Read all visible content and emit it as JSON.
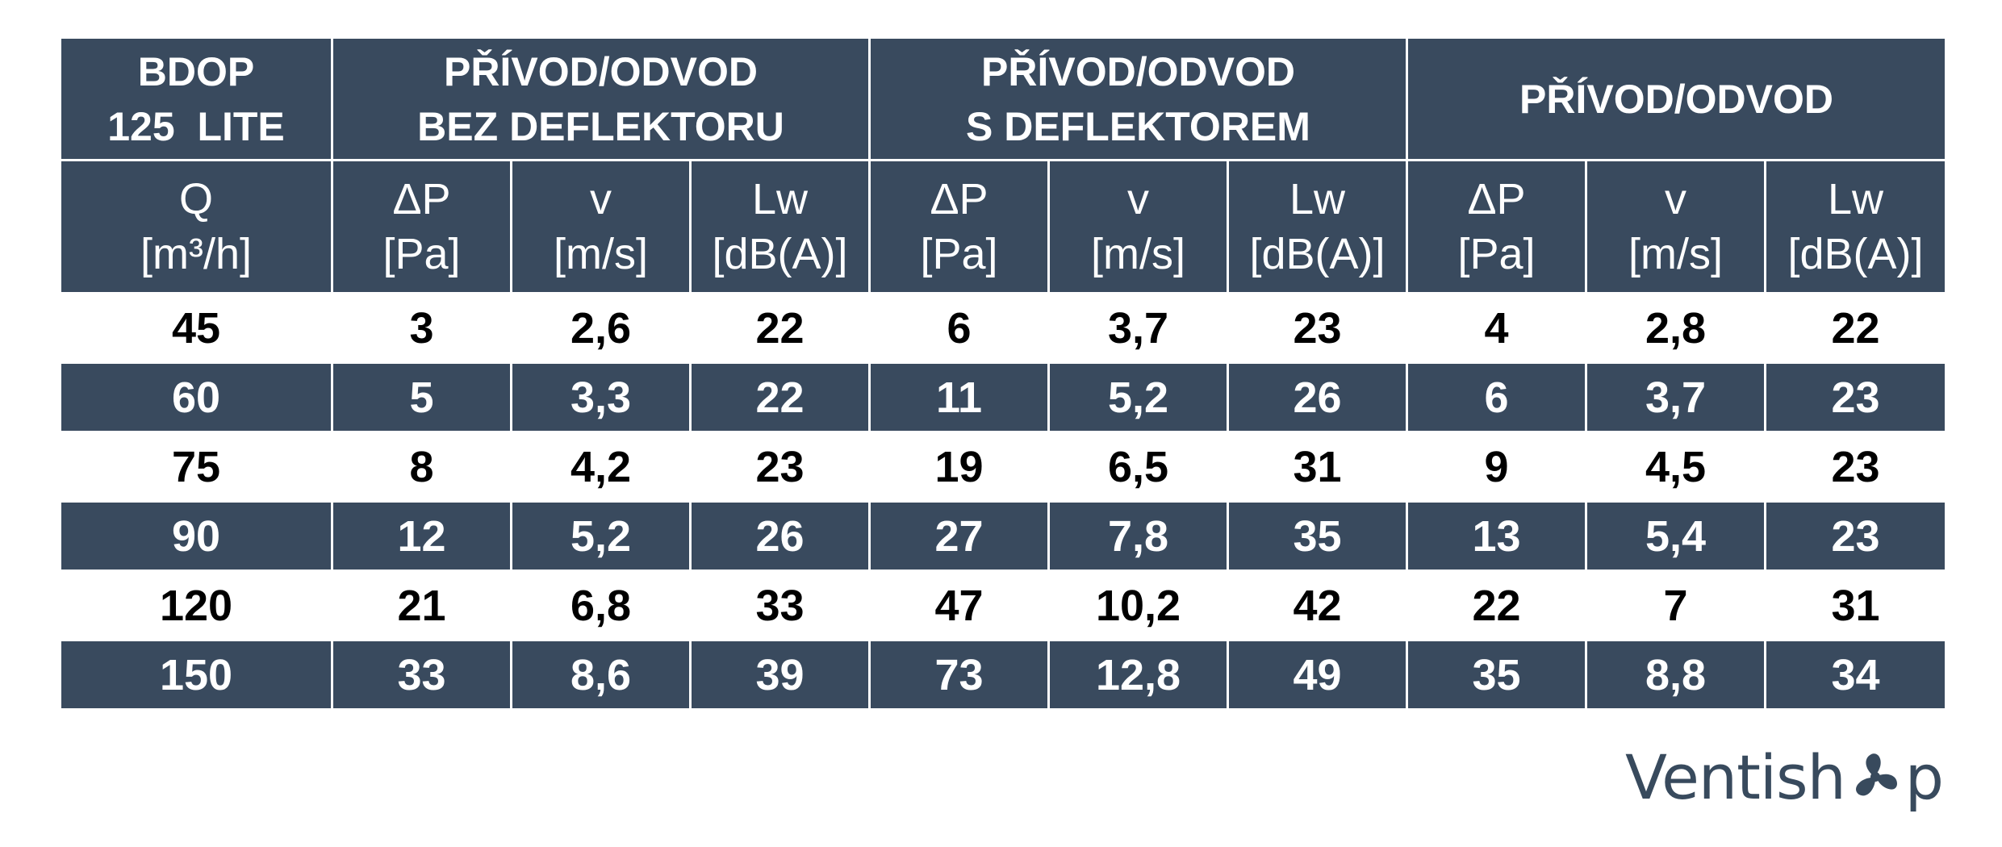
{
  "header": {
    "model_lines": [
      "BDOP",
      "125  LITE"
    ],
    "groups": [
      {
        "lines": [
          "PŘÍVOD/ODVOD",
          "BEZ DEFLEKTORU"
        ]
      },
      {
        "lines": [
          "PŘÍVOD/ODVOD",
          "S DEFLEKTOREM"
        ]
      },
      {
        "lines": [
          "PŘÍVOD/ODVOD"
        ]
      }
    ]
  },
  "columns": {
    "q": {
      "symbol": "Q",
      "unit": "[m³/h]"
    },
    "groups": [
      [
        {
          "symbol": "ΔP",
          "unit": "[Pa]"
        },
        {
          "symbol": "v",
          "unit": "[m/s]"
        },
        {
          "symbol": "Lw",
          "unit": "[dB(A)]"
        }
      ],
      [
        {
          "symbol": "ΔP",
          "unit": "[Pa]"
        },
        {
          "symbol": "v",
          "unit": "[m/s]"
        },
        {
          "symbol": "Lw",
          "unit": "[dB(A)]"
        }
      ],
      [
        {
          "symbol": "ΔP",
          "unit": "[Pa]"
        },
        {
          "symbol": "v",
          "unit": "[m/s]"
        },
        {
          "symbol": "Lw",
          "unit": "[dB(A)]"
        }
      ]
    ]
  },
  "rows": [
    [
      "45",
      "3",
      "2,6",
      "22",
      "6",
      "3,7",
      "23",
      "4",
      "2,8",
      "22"
    ],
    [
      "60",
      "5",
      "3,3",
      "22",
      "11",
      "5,2",
      "26",
      "6",
      "3,7",
      "23"
    ],
    [
      "75",
      "8",
      "4,2",
      "23",
      "19",
      "6,5",
      "31",
      "9",
      "4,5",
      "23"
    ],
    [
      "90",
      "12",
      "5,2",
      "26",
      "27",
      "7,8",
      "35",
      "13",
      "5,4",
      "23"
    ],
    [
      "120",
      "21",
      "6,8",
      "33",
      "47",
      "10,2",
      "42",
      "22",
      "7",
      "31"
    ],
    [
      "150",
      "33",
      "8,6",
      "39",
      "73",
      "12,8",
      "49",
      "35",
      "8,8",
      "34"
    ]
  ],
  "brand": {
    "before": "Ventish",
    "fan_icon": "fan-icon",
    "after": "p"
  },
  "colors": {
    "header_bg": "#394a5e",
    "band_dark": "#394a5e",
    "band_light": "#ffffff",
    "brand": "#384a5d"
  }
}
